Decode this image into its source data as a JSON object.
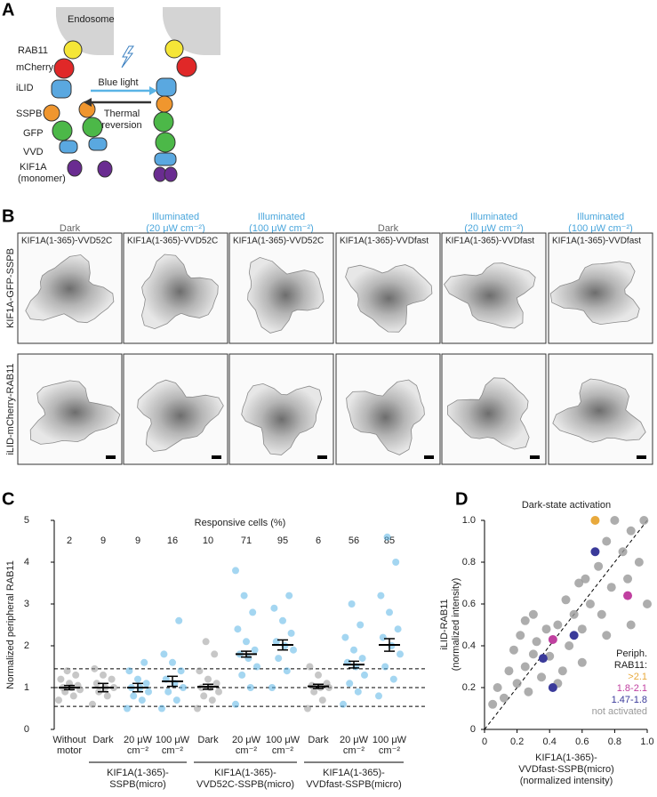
{
  "figure": {
    "panel_a": {
      "letter": "A",
      "endosome_left": "Endosome",
      "labels": [
        "RAB11",
        "mCherry",
        "iLID",
        "SSPB",
        "GFP",
        "VVD",
        "KIF1A",
        "(monomer)"
      ],
      "forward": "Blue light",
      "reverse": [
        "Thermal",
        "reversion"
      ]
    },
    "panel_b": {
      "letter": "B",
      "column_headers": [
        {
          "lines": [
            "Dark"
          ],
          "color": "#666666"
        },
        {
          "lines": [
            "Illuminated",
            "(20 μW cm⁻²)"
          ],
          "color": "#4aa6dc"
        },
        {
          "lines": [
            "Illuminated",
            "(100 μW cm⁻²)"
          ],
          "color": "#4aa6dc"
        },
        {
          "lines": [
            "Dark"
          ],
          "color": "#666666"
        },
        {
          "lines": [
            "Illuminated",
            "(20 μW cm⁻²)"
          ],
          "color": "#4aa6dc"
        },
        {
          "lines": [
            "Illuminated",
            "(100 μW cm⁻²)"
          ],
          "color": "#4aa6dc"
        }
      ],
      "cell_labels": [
        "KIF1A(1-365)-VVD52C",
        "KIF1A(1-365)-VVD52C",
        "KIF1A(1-365)-VVD52C",
        "KIF1A(1-365)-VVDfast",
        "KIF1A(1-365)-VVDfast",
        "KIF1A(1-365)-VVDfast"
      ],
      "row_labels": [
        "KIF1A-GFP-SSPB",
        "iLID-mCherry-RAB11"
      ]
    }
  },
  "chart_data": [
    {
      "type": "strip",
      "letter": "C",
      "top_label": "Responsive cells (%)",
      "ylabel": "Normalized peripheral RAB11",
      "categories": [
        [
          "Without",
          "motor"
        ],
        [
          "Dark"
        ],
        [
          "20 μW",
          "cm⁻²"
        ],
        [
          "100 μW",
          "cm⁻²"
        ],
        [
          "Dark"
        ],
        [
          "20 μW",
          "cm⁻²"
        ],
        [
          "100 μW",
          "cm⁻²"
        ],
        [
          "Dark"
        ],
        [
          "20 μW",
          "cm⁻²"
        ],
        [
          "100 μW",
          "cm⁻²"
        ]
      ],
      "group_labels": [
        [
          "KIF1A(1-365)-",
          "SSPB(micro)"
        ],
        [
          "KIF1A(1-365)-",
          "VVD52C-SSPB(micro)"
        ],
        [
          "KIF1A(1-365)-",
          "VVDfast-SSPB(micro)"
        ]
      ],
      "responsive": [
        2,
        9,
        9,
        16,
        10,
        71,
        95,
        6,
        56,
        85
      ],
      "colors": [
        "#999999",
        "#999999",
        "#5ab4e6",
        "#5ab4e6",
        "#999999",
        "#5ab4e6",
        "#5ab4e6",
        "#999999",
        "#5ab4e6",
        "#5ab4e6"
      ],
      "means": [
        1.0,
        1.0,
        1.0,
        1.15,
        1.02,
        1.8,
        2.02,
        1.03,
        1.55,
        2.02
      ],
      "errors": [
        0.05,
        0.1,
        0.1,
        0.12,
        0.06,
        0.07,
        0.12,
        0.05,
        0.08,
        0.15
      ],
      "points": [
        [
          0.7,
          0.8,
          0.9,
          0.95,
          1.0,
          1.0,
          1.05,
          1.1,
          1.2,
          1.3,
          1.4
        ],
        [
          0.6,
          0.8,
          0.9,
          1.0,
          1.0,
          1.1,
          1.2,
          1.3,
          1.45
        ],
        [
          0.5,
          0.7,
          0.8,
          0.9,
          1.0,
          1.0,
          1.1,
          1.2,
          1.4,
          1.6
        ],
        [
          0.5,
          0.7,
          0.9,
          1.0,
          1.1,
          1.2,
          1.4,
          1.6,
          1.8,
          2.6
        ],
        [
          0.5,
          0.7,
          0.8,
          0.9,
          1.0,
          1.0,
          1.1,
          1.2,
          1.4,
          1.8,
          2.1
        ],
        [
          0.6,
          1.0,
          1.3,
          1.5,
          1.7,
          1.8,
          1.9,
          2.1,
          2.4,
          2.8,
          3.2,
          3.8
        ],
        [
          1.0,
          1.4,
          1.7,
          1.9,
          2.0,
          2.1,
          2.3,
          2.6,
          2.9,
          3.2
        ],
        [
          0.5,
          0.7,
          0.9,
          1.0,
          1.0,
          1.05,
          1.1,
          1.3,
          1.5
        ],
        [
          0.6,
          0.9,
          1.1,
          1.3,
          1.5,
          1.6,
          1.7,
          1.9,
          2.2,
          2.5,
          3.0
        ],
        [
          0.8,
          1.2,
          1.5,
          1.8,
          2.0,
          2.2,
          2.4,
          2.8,
          3.2,
          4.0,
          4.6
        ]
      ],
      "reference_lines": [
        1.45,
        1.0,
        0.55
      ],
      "ylim": [
        0,
        5
      ],
      "yticks": [
        0,
        1,
        2,
        3,
        4,
        5
      ]
    },
    {
      "type": "scatter",
      "letter": "D",
      "title": "Dark-state activation",
      "ylabel": [
        "iLID-RAB11",
        "(normalized intensity)"
      ],
      "xlabel": [
        "KIF1A(1-365)-",
        "VVDfast-SSPB(micro)",
        "(normalized intensity)"
      ],
      "legend_title": [
        "Periph.",
        "RAB11:"
      ],
      "xlim": [
        0,
        1
      ],
      "ylim": [
        0,
        1
      ],
      "xticks": [
        0,
        0.2,
        0.4,
        0.6,
        {
          "value": 0.8,
          "label": "0.8"
        },
        {
          "value": 1,
          "label": "1.0"
        }
      ],
      "yticks": [
        0,
        0.2,
        0.4,
        0.6,
        0.8,
        {
          "value": 1,
          "label": "1.0"
        }
      ],
      "series": [
        {
          "name": ">2.1",
          "color": "#e8a93c",
          "x": [
            0.68
          ],
          "y": [
            1.0
          ]
        },
        {
          "name": "1.8-2.1",
          "color": "#c040a0",
          "x": [
            0.88,
            0.42
          ],
          "y": [
            0.64,
            0.43
          ]
        },
        {
          "name": "1.47-1.8",
          "color": "#3a3a9a",
          "x": [
            0.68,
            0.55,
            0.36,
            0.42
          ],
          "y": [
            0.85,
            0.45,
            0.34,
            0.2
          ]
        },
        {
          "name": "not activated",
          "color": "#999999",
          "x": [
            0.05,
            0.08,
            0.12,
            0.15,
            0.18,
            0.2,
            0.22,
            0.25,
            0.27,
            0.3,
            0.32,
            0.35,
            0.38,
            0.4,
            0.45,
            0.48,
            0.5,
            0.52,
            0.55,
            0.58,
            0.6,
            0.62,
            0.65,
            0.7,
            0.72,
            0.75,
            0.78,
            0.8,
            0.85,
            0.88,
            0.9,
            0.95,
            0.98,
            1.0,
            0.3,
            0.45,
            0.6,
            0.75,
            0.9,
            0.25
          ],
          "y": [
            0.12,
            0.2,
            0.15,
            0.28,
            0.38,
            0.22,
            0.45,
            0.3,
            0.18,
            0.55,
            0.42,
            0.25,
            0.48,
            0.35,
            0.5,
            0.28,
            0.62,
            0.4,
            0.55,
            0.7,
            0.48,
            0.72,
            0.6,
            0.78,
            0.55,
            0.9,
            0.68,
            1.0,
            0.85,
            0.72,
            0.95,
            0.8,
            1.0,
            0.6,
            0.36,
            0.22,
            0.32,
            0.45,
            0.5,
            0.52
          ]
        }
      ]
    }
  ]
}
